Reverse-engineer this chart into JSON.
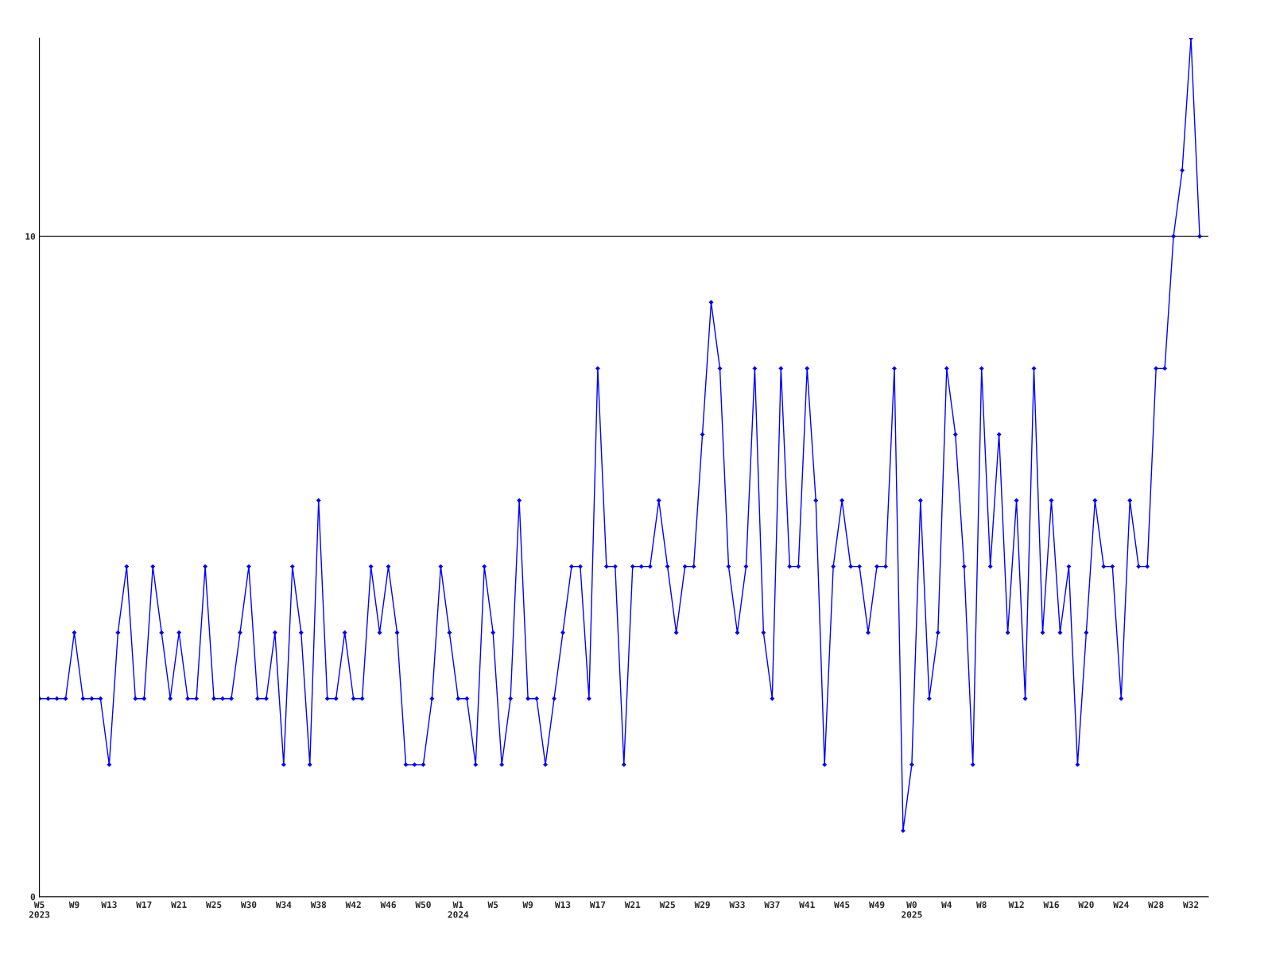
{
  "chart_data": {
    "type": "line",
    "categories": [
      "W5\n2023",
      null,
      null,
      null,
      "W9",
      null,
      null,
      null,
      "W13",
      null,
      null,
      null,
      "W17",
      null,
      null,
      null,
      "W21",
      null,
      null,
      null,
      "W25",
      null,
      null,
      null,
      "W30",
      null,
      null,
      null,
      "W34",
      null,
      null,
      null,
      "W38",
      null,
      null,
      null,
      "W42",
      null,
      null,
      null,
      "W46",
      null,
      null,
      null,
      "W50",
      null,
      null,
      null,
      "W1\n2024",
      null,
      null,
      null,
      "W5",
      null,
      null,
      null,
      "W9",
      null,
      null,
      null,
      "W13",
      null,
      null,
      null,
      "W17",
      null,
      null,
      null,
      "W21",
      null,
      null,
      null,
      "W25",
      null,
      null,
      null,
      "W29",
      null,
      null,
      null,
      "W33",
      null,
      null,
      null,
      "W37",
      null,
      null,
      null,
      "W41",
      null,
      null,
      null,
      "W45",
      null,
      null,
      null,
      "W49",
      null,
      null,
      null,
      "W0\n2025",
      null,
      null,
      null,
      "W4",
      null,
      null,
      null,
      "W8",
      null,
      null,
      null,
      "W12",
      null,
      null,
      null,
      "W16",
      null,
      null,
      null,
      "W20",
      null,
      null,
      null,
      "W24",
      null,
      null,
      null,
      "W28",
      null,
      null,
      null,
      "W32",
      null,
      null
    ],
    "series": [
      {
        "color": "#0000ff",
        "values": [
          3,
          3,
          3,
          3,
          4,
          3,
          3,
          3,
          2,
          4,
          5,
          3,
          3,
          5,
          4,
          3,
          4,
          3,
          3,
          5,
          3,
          3,
          3,
          4,
          5,
          3,
          3,
          4,
          2,
          5,
          4,
          2,
          6,
          3,
          3,
          4,
          3,
          3,
          5,
          4,
          5,
          4,
          2,
          2,
          2,
          3,
          5,
          4,
          3,
          3,
          2,
          5,
          4,
          2,
          3,
          6,
          3,
          3,
          2,
          3,
          4,
          5,
          5,
          3,
          8,
          5,
          5,
          2,
          5,
          5,
          5,
          6,
          5,
          4,
          5,
          5,
          7,
          9,
          8,
          5,
          4,
          5,
          8,
          4,
          3,
          8,
          5,
          5,
          8,
          6,
          2,
          5,
          6,
          5,
          5,
          4,
          5,
          5,
          8,
          1,
          2,
          6,
          3,
          4,
          8,
          7,
          5,
          2,
          8,
          5,
          7,
          4,
          6,
          3,
          8,
          4,
          6,
          4,
          5,
          2,
          4,
          6,
          5,
          5,
          3,
          6,
          5,
          5,
          8,
          8,
          10,
          11,
          13,
          10,
          null
        ]
      }
    ],
    "ylim": [
      0,
      13
    ],
    "yticks": [
      0,
      10
    ],
    "grid": "y",
    "marker": "diamond",
    "line_style": "solid"
  }
}
